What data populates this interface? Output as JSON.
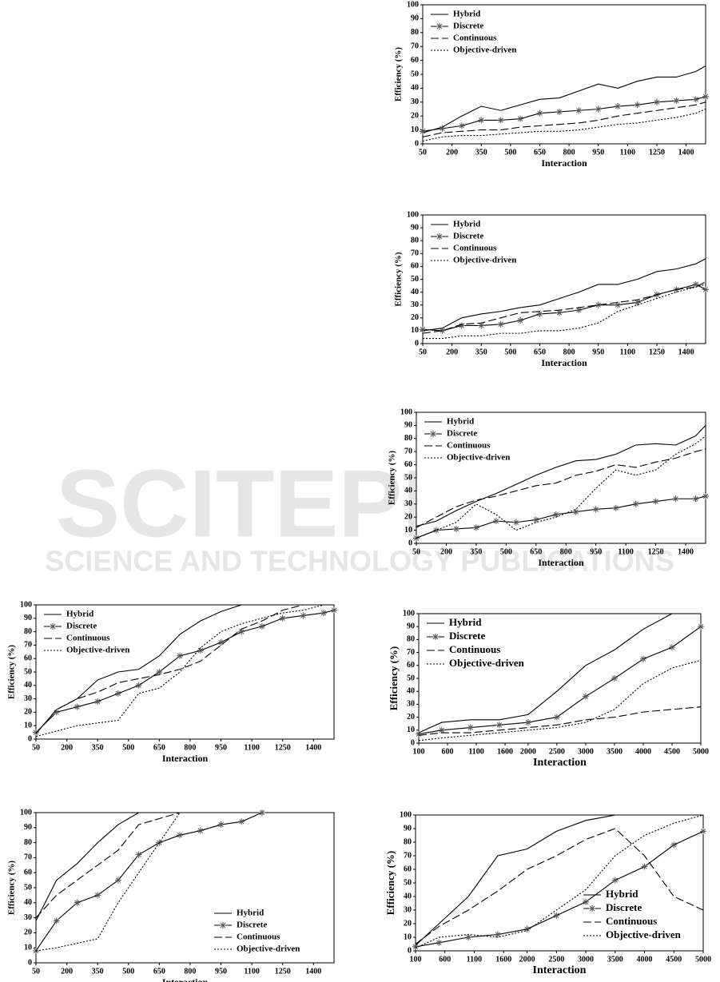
{
  "watermark": {
    "title": "SCITEPRESS",
    "subtitle": "SCIENCE AND TECHNOLOGY PUBLICATIONS"
  },
  "chart_data": [
    {
      "type": "line",
      "xlabel": "Interaction",
      "ylabel": "Efficiency (%)",
      "legend": "upper left",
      "x": [
        50,
        150,
        250,
        350,
        450,
        550,
        650,
        750,
        850,
        950,
        1050,
        1150,
        1250,
        1350,
        1450,
        1500
      ],
      "xlim": [
        50,
        1500
      ],
      "ylim": [
        0,
        100
      ],
      "xticks": [
        50,
        200,
        350,
        500,
        650,
        800,
        950,
        1100,
        1250,
        1400
      ],
      "yticks": [
        0,
        10,
        20,
        30,
        40,
        50,
        60,
        70,
        80,
        90,
        100
      ],
      "series": [
        {
          "name": "Hybrid",
          "color": "#000",
          "dash": "solid",
          "values": [
            8,
            12,
            20,
            27,
            24,
            28,
            32,
            33,
            38,
            43,
            40,
            45,
            48,
            48,
            52,
            56
          ]
        },
        {
          "name": "Discrete",
          "color": "#000",
          "dash": "solid",
          "marker": "star",
          "values": [
            9,
            11,
            13,
            17,
            17,
            18,
            22,
            23,
            24,
            25,
            27,
            28,
            30,
            31,
            32,
            34
          ]
        },
        {
          "name": "Continuous",
          "color": "#000",
          "dash": "dashed",
          "values": [
            5,
            8,
            9,
            10,
            10,
            12,
            13,
            14,
            15,
            17,
            20,
            22,
            24,
            26,
            28,
            30
          ]
        },
        {
          "name": "Objective-driven",
          "color": "#000",
          "dash": "dotted",
          "values": [
            2,
            5,
            6,
            6,
            7,
            8,
            9,
            9,
            10,
            12,
            14,
            15,
            17,
            19,
            22,
            25
          ]
        }
      ]
    },
    {
      "type": "line",
      "xlabel": "Interaction",
      "ylabel": "Efficiency (%)",
      "legend": "upper left",
      "x": [
        50,
        150,
        250,
        350,
        450,
        550,
        650,
        750,
        850,
        950,
        1050,
        1150,
        1250,
        1350,
        1450,
        1500
      ],
      "xlim": [
        50,
        1500
      ],
      "ylim": [
        0,
        100
      ],
      "xticks": [
        50,
        200,
        350,
        500,
        650,
        800,
        950,
        1100,
        1250,
        1400
      ],
      "yticks": [
        0,
        10,
        20,
        30,
        40,
        50,
        60,
        70,
        80,
        90,
        100
      ],
      "series": [
        {
          "name": "Hybrid",
          "color": "#000",
          "dash": "solid",
          "values": [
            10,
            12,
            20,
            23,
            25,
            28,
            30,
            35,
            40,
            46,
            46,
            50,
            56,
            58,
            62,
            66
          ]
        },
        {
          "name": "Discrete",
          "color": "#000",
          "dash": "solid",
          "marker": "star",
          "values": [
            11,
            10,
            14,
            14,
            15,
            18,
            23,
            24,
            26,
            30,
            30,
            32,
            38,
            42,
            46,
            42
          ]
        },
        {
          "name": "Continuous",
          "color": "#000",
          "dash": "dashed",
          "values": [
            8,
            10,
            15,
            16,
            20,
            24,
            25,
            26,
            28,
            30,
            32,
            34,
            38,
            42,
            44,
            48
          ]
        },
        {
          "name": "Objective-driven",
          "color": "#000",
          "dash": "dotted",
          "values": [
            4,
            4,
            6,
            6,
            8,
            8,
            10,
            10,
            12,
            16,
            25,
            30,
            35,
            40,
            44,
            46
          ]
        }
      ]
    },
    {
      "type": "line",
      "xlabel": "Interaction",
      "ylabel": "Efficiency (%)",
      "legend": "upper left",
      "x": [
        50,
        150,
        250,
        350,
        450,
        550,
        650,
        750,
        850,
        950,
        1050,
        1150,
        1250,
        1350,
        1450,
        1500
      ],
      "xlim": [
        50,
        1500
      ],
      "ylim": [
        0,
        100
      ],
      "xticks": [
        50,
        200,
        350,
        500,
        650,
        800,
        950,
        1100,
        1250,
        1400
      ],
      "yticks": [
        0,
        10,
        20,
        30,
        40,
        50,
        60,
        70,
        80,
        90,
        100
      ],
      "series": [
        {
          "name": "Hybrid",
          "color": "#000",
          "dash": "solid",
          "values": [
            13,
            17,
            25,
            32,
            38,
            45,
            52,
            58,
            63,
            64,
            68,
            75,
            76,
            75,
            82,
            90
          ]
        },
        {
          "name": "Discrete",
          "color": "#000",
          "dash": "solid",
          "marker": "star",
          "values": [
            4,
            10,
            11,
            12,
            17,
            16,
            18,
            22,
            24,
            26,
            27,
            30,
            32,
            34,
            34,
            36
          ]
        },
        {
          "name": "Continuous",
          "color": "#000",
          "dash": "dashed",
          "values": [
            12,
            20,
            28,
            33,
            36,
            40,
            44,
            46,
            52,
            55,
            60,
            58,
            62,
            65,
            70,
            72
          ]
        },
        {
          "name": "Objective-driven",
          "color": "#000",
          "dash": "dotted",
          "values": [
            4,
            10,
            16,
            30,
            22,
            10,
            16,
            20,
            26,
            42,
            56,
            52,
            56,
            68,
            76,
            82
          ]
        }
      ]
    },
    {
      "type": "line",
      "xlabel": "Interaction",
      "ylabel": "Efficiency (%)",
      "legend": "upper left",
      "x": [
        50,
        150,
        250,
        350,
        450,
        550,
        650,
        750,
        850,
        950,
        1050,
        1150,
        1250,
        1350,
        1450,
        1500
      ],
      "xlim": [
        50,
        1500
      ],
      "ylim": [
        0,
        100
      ],
      "xticks": [
        50,
        200,
        350,
        500,
        650,
        800,
        950,
        1100,
        1250,
        1400
      ],
      "yticks": [
        0,
        10,
        20,
        30,
        40,
        50,
        60,
        70,
        80,
        90,
        100
      ],
      "series": [
        {
          "name": "Hybrid",
          "color": "#000",
          "dash": "solid",
          "values": [
            4,
            22,
            30,
            44,
            50,
            52,
            62,
            78,
            88,
            95,
            100,
            null,
            null,
            null,
            null,
            null
          ]
        },
        {
          "name": "Discrete",
          "color": "#000",
          "dash": "solid",
          "marker": "star",
          "values": [
            5,
            20,
            24,
            28,
            34,
            40,
            50,
            62,
            66,
            72,
            80,
            84,
            90,
            92,
            94,
            96
          ]
        },
        {
          "name": "Continuous",
          "color": "#000",
          "dash": "dashed",
          "values": [
            4,
            22,
            30,
            35,
            42,
            45,
            48,
            52,
            58,
            70,
            82,
            88,
            96,
            100,
            null,
            null
          ]
        },
        {
          "name": "Objective-driven",
          "color": "#000",
          "dash": "dotted",
          "values": [
            2,
            6,
            10,
            12,
            14,
            34,
            38,
            50,
            68,
            80,
            86,
            90,
            94,
            96,
            100,
            null
          ]
        }
      ]
    },
    {
      "type": "line",
      "xlabel": "Interaction",
      "ylabel": "Efficiency (%)",
      "legend": "lower right",
      "x": [
        50,
        150,
        250,
        350,
        450,
        550,
        650,
        750,
        850,
        950,
        1050,
        1150,
        1250,
        1350,
        1450,
        1500
      ],
      "xlim": [
        50,
        1500
      ],
      "ylim": [
        0,
        100
      ],
      "xticks": [
        50,
        200,
        350,
        500,
        650,
        800,
        950,
        1100,
        1250,
        1400
      ],
      "yticks": [
        0,
        10,
        20,
        30,
        40,
        50,
        60,
        70,
        80,
        90,
        100
      ],
      "series": [
        {
          "name": "Hybrid",
          "color": "#000",
          "dash": "solid",
          "values": [
            28,
            55,
            66,
            80,
            92,
            100,
            null,
            null,
            null,
            null,
            null,
            null,
            null,
            null,
            null,
            null
          ]
        },
        {
          "name": "Discrete",
          "color": "#000",
          "dash": "solid",
          "marker": "star",
          "values": [
            8,
            28,
            40,
            45,
            55,
            72,
            80,
            85,
            88,
            92,
            94,
            100,
            null,
            null,
            null,
            null
          ]
        },
        {
          "name": "Continuous",
          "color": "#000",
          "dash": "dashed",
          "values": [
            30,
            45,
            55,
            65,
            75,
            92,
            96,
            100,
            null,
            null,
            null,
            null,
            null,
            null,
            null,
            null
          ]
        },
        {
          "name": "Objective-driven",
          "color": "#000",
          "dash": "dotted",
          "values": [
            8,
            10,
            13,
            16,
            40,
            60,
            80,
            100,
            null,
            null,
            null,
            null,
            null,
            null,
            null,
            null
          ]
        }
      ]
    },
    {
      "type": "line",
      "xlabel": "Interaction",
      "ylabel": "Efficiency (%)",
      "legend": "upper left",
      "x": [
        100,
        500,
        1000,
        1500,
        2000,
        2500,
        3000,
        3500,
        4000,
        4500,
        5000
      ],
      "xlim": [
        100,
        5000
      ],
      "ylim": [
        0,
        100
      ],
      "xticks": [
        100,
        600,
        1100,
        1600,
        2000,
        2500,
        3000,
        3500,
        4000,
        4500,
        5000
      ],
      "yticks": [
        0,
        10,
        20,
        30,
        40,
        50,
        60,
        70,
        80,
        90,
        100
      ],
      "series": [
        {
          "name": "Hybrid",
          "color": "#000",
          "dash": "solid",
          "values": [
            8,
            16,
            18,
            18,
            22,
            40,
            60,
            72,
            88,
            100,
            null
          ]
        },
        {
          "name": "Discrete",
          "color": "#000",
          "dash": "solid",
          "marker": "star",
          "values": [
            7,
            10,
            12,
            14,
            16,
            20,
            36,
            50,
            65,
            74,
            90
          ]
        },
        {
          "name": "Continuous",
          "color": "#000",
          "dash": "dashed",
          "values": [
            6,
            8,
            8,
            10,
            12,
            14,
            18,
            20,
            24,
            26,
            28
          ]
        },
        {
          "name": "Objective-driven",
          "color": "#000",
          "dash": "dotted",
          "values": [
            2,
            4,
            6,
            8,
            10,
            12,
            16,
            26,
            46,
            58,
            64
          ]
        }
      ]
    },
    {
      "type": "line",
      "xlabel": "Interaction",
      "ylabel": "Efficiency (%)",
      "legend": "lower right",
      "x": [
        100,
        500,
        1000,
        1500,
        2000,
        2500,
        3000,
        3500,
        4000,
        4500,
        5000
      ],
      "xlim": [
        100,
        5000
      ],
      "ylim": [
        0,
        100
      ],
      "xticks": [
        100,
        600,
        1100,
        1600,
        2000,
        2500,
        3000,
        3500,
        4000,
        4500,
        5000
      ],
      "yticks": [
        0,
        10,
        20,
        30,
        40,
        50,
        60,
        70,
        80,
        90,
        100
      ],
      "series": [
        {
          "name": "Hybrid",
          "color": "#000",
          "dash": "solid",
          "values": [
            4,
            20,
            40,
            70,
            75,
            88,
            96,
            100,
            null,
            null,
            null
          ]
        },
        {
          "name": "Discrete",
          "color": "#000",
          "dash": "solid",
          "marker": "star",
          "values": [
            3,
            6,
            10,
            12,
            16,
            26,
            36,
            52,
            62,
            78,
            88
          ]
        },
        {
          "name": "Continuous",
          "color": "#000",
          "dash": "dashed",
          "values": [
            5,
            18,
            30,
            44,
            60,
            70,
            82,
            90,
            70,
            40,
            30
          ]
        },
        {
          "name": "Objective-driven",
          "color": "#000",
          "dash": "dotted",
          "values": [
            2,
            10,
            12,
            10,
            15,
            30,
            45,
            70,
            85,
            94,
            100
          ]
        }
      ]
    }
  ]
}
